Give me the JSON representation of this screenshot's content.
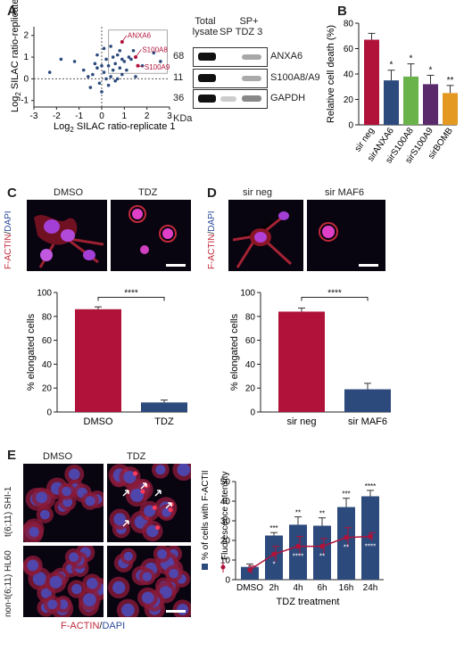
{
  "panels": {
    "a": {
      "label": "A",
      "scatter": {
        "xlabel_pre": "Log",
        "xlabel_sub": "2",
        "xlabel_post": " SILAC ratio-replicate 1",
        "ylabel_pre": "Log",
        "ylabel_sub": "2",
        "ylabel_post": " SILAC ratio-replicate 2",
        "annotations": [
          "ANXA6",
          "S100A8",
          "S100A9"
        ],
        "accent": "#b0123a"
      },
      "blot": {
        "col_headers": [
          "Total lysate",
          "SP",
          "SP+ TDZ 3"
        ],
        "bands": [
          {
            "kda": "68",
            "protein": "ANXA6"
          },
          {
            "kda": "11",
            "protein": "S100A8/A9"
          },
          {
            "kda": "36",
            "protein": "GAPDH"
          }
        ],
        "kda_unit": "KDa"
      }
    },
    "b": {
      "label": "B"
    },
    "c": {
      "label": "C",
      "image_labels": [
        "DMSO",
        "TDZ"
      ],
      "stain": {
        "red": "F-ACTIN",
        "sep": "/",
        "blue": "DAPI"
      },
      "significance": "****"
    },
    "d": {
      "label": "D",
      "image_labels": [
        "sir neg",
        "sir MAF6"
      ],
      "stain": {
        "red": "F-ACTIN",
        "sep": "/",
        "blue": "DAPI"
      },
      "significance": "****"
    },
    "e": {
      "label": "E",
      "image_labels": [
        "DMSO",
        "TDZ"
      ],
      "row_labels": [
        "t(6;11) SHI-1",
        "non-t(6;11) HL60"
      ],
      "row_label_italic": "non",
      "stain": {
        "red": "F-ACTIN",
        "sep": "/",
        "blue": "DAPI"
      },
      "legend_pct": "% of cells with F-ACTIN aggregates",
      "legend_fi": "Fluorescence intensity (AU)"
    }
  },
  "colors": {
    "red_bar": "#b0123a",
    "blue_bar": "#2c4a7c",
    "green_bar": "#6ab34a",
    "purple_bar": "#5b2a6b",
    "orange_bar": "#e49a22"
  },
  "chart_data": [
    {
      "id": "a-scatter",
      "type": "scatter",
      "xlabel": "Log2 SILAC ratio-replicate 1",
      "ylabel": "Log2 SILAC ratio-replicate 2",
      "xticks": [
        -3,
        -2,
        -1,
        0,
        1,
        2,
        3
      ],
      "yticks": [
        -1,
        0,
        1,
        2
      ],
      "xlim": [
        -3,
        3
      ],
      "ylim": [
        -1.3,
        2.4
      ],
      "points": [
        [
          -0.4,
          0.2
        ],
        [
          -0.2,
          0.5
        ],
        [
          0.1,
          0.3
        ],
        [
          0.3,
          0.6
        ],
        [
          0.5,
          0.4
        ],
        [
          0.2,
          0.9
        ],
        [
          0.6,
          0.7
        ],
        [
          0.8,
          0.5
        ],
        [
          -0.6,
          0.1
        ],
        [
          -0.1,
          -0.2
        ],
        [
          0.4,
          0.1
        ],
        [
          1.0,
          0.8
        ],
        [
          0.7,
          1.1
        ],
        [
          -0.3,
          0.7
        ],
        [
          0.0,
          0.6
        ],
        [
          0.9,
          0.2
        ],
        [
          1.3,
          0.9
        ],
        [
          0.2,
          0.0
        ],
        [
          -0.8,
          0.4
        ],
        [
          0.5,
          1.0
        ],
        [
          1.1,
          0.4
        ],
        [
          -0.5,
          -0.4
        ],
        [
          0.3,
          -0.3
        ],
        [
          0.6,
          -0.1
        ],
        [
          1.4,
          1.3
        ],
        [
          2.3,
          1.2
        ],
        [
          2.6,
          0.8
        ],
        [
          1.8,
          0.6
        ],
        [
          1.5,
          0.1
        ],
        [
          -1.8,
          0.9
        ],
        [
          -2.3,
          0.3
        ],
        [
          0.1,
          1.4
        ],
        [
          0.4,
          1.5
        ],
        [
          0.8,
          1.3
        ],
        [
          -1.2,
          0.8
        ],
        [
          0.0,
          -0.6
        ],
        [
          0.7,
          0.0
        ],
        [
          1.2,
          1.0
        ],
        [
          -0.2,
          1.1
        ],
        [
          0.9,
          0.9
        ]
      ],
      "highlighted": [
        {
          "name": "ANXA6",
          "x": 0.9,
          "y": 1.7
        },
        {
          "name": "S100A8",
          "x": 1.5,
          "y": 1.0
        },
        {
          "name": "S100A9",
          "x": 1.6,
          "y": 0.6
        }
      ]
    },
    {
      "id": "b-bar",
      "type": "bar",
      "categories": [
        "sir neg",
        "sirANXA6",
        "sirS100A8",
        "sirS100A9",
        "sirBOMB"
      ],
      "values": [
        67,
        35,
        38,
        32,
        25
      ],
      "errors": [
        5,
        8,
        10,
        7,
        6
      ],
      "significance": [
        "",
        "*",
        "*",
        "*",
        "**"
      ],
      "ylabel": "Relative cell death (%)",
      "ylim": [
        0,
        80
      ],
      "yticks": [
        0,
        20,
        40,
        60,
        80
      ]
    },
    {
      "id": "c-bar",
      "type": "bar",
      "categories": [
        "DMSO",
        "TDZ"
      ],
      "values": [
        86,
        8
      ],
      "errors": [
        2,
        2
      ],
      "ylabel": "% elongated cells",
      "ylim": [
        0,
        100
      ],
      "yticks": [
        0,
        20,
        40,
        60,
        80,
        100
      ]
    },
    {
      "id": "d-bar",
      "type": "bar",
      "categories": [
        "sir neg",
        "sir MAF6"
      ],
      "values": [
        84,
        19
      ],
      "errors": [
        3,
        5
      ],
      "ylabel": "% elongated cells",
      "ylim": [
        0,
        100
      ],
      "yticks": [
        0,
        20,
        40,
        60,
        80,
        100
      ]
    },
    {
      "id": "e-combo",
      "type": "bar",
      "categories": [
        "DMSO",
        "2h",
        "4h",
        "6h",
        "16h",
        "24h"
      ],
      "xlabel": "TDZ treatment",
      "series": [
        {
          "name": "% of cells with F-ACTIN aggregates",
          "values": [
            6.5,
            22.5,
            28,
            27.5,
            37,
            42.5
          ],
          "errors": [
            1.5,
            1.5,
            4,
            4,
            4.5,
            3
          ],
          "significance": [
            "",
            "***",
            "**",
            "**",
            "***",
            "****"
          ]
        },
        {
          "name": "Fluorescence intensity (AU)",
          "values": [
            5,
            13,
            17,
            17,
            21.5,
            22
          ],
          "errors": [
            2,
            4,
            5,
            4,
            5,
            2
          ],
          "significance": [
            "",
            "*",
            "****",
            "**",
            "**",
            "****"
          ]
        }
      ],
      "ylim": [
        0,
        50
      ],
      "yticks": [
        0,
        10,
        20,
        30,
        40,
        50
      ]
    }
  ]
}
